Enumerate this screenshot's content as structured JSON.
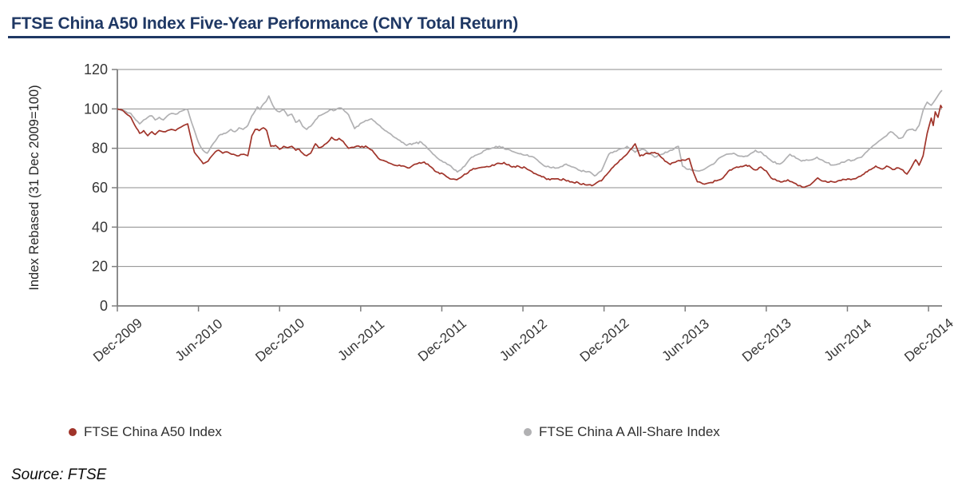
{
  "header": {
    "title": "FTSE China A50 Index Five-Year Performance (CNY Total Return)",
    "title_color": "#1F3864",
    "rule_color": "#1F3864"
  },
  "footer": {
    "source": "Source: FTSE"
  },
  "chart_data": {
    "type": "line",
    "title": "FTSE China A50 Index Five-Year Performance (CNY Total Return)",
    "xlabel": "",
    "ylabel": "Index Rebased (31 Dec 2009=100)",
    "ylim": [
      0,
      120
    ],
    "yticks": [
      0,
      20,
      40,
      60,
      80,
      100,
      120
    ],
    "x_unit": "months since Dec-2009",
    "xlim_months": [
      0,
      61
    ],
    "xticks_months": [
      0,
      6,
      12,
      18,
      24,
      30,
      36,
      42,
      48,
      54,
      60
    ],
    "xticklabels": [
      "Dec-2009",
      "Jun-2010",
      "Dec-2010",
      "Jun-2011",
      "Dec-2011",
      "Jun-2012",
      "Dec-2012",
      "Jun-2013",
      "Dec-2013",
      "Jun-2014",
      "Dec-2014"
    ],
    "grid": "horizontal",
    "legend_position": "bottom",
    "axis_color": "#7f7f7f",
    "grid_color": "#8c8c8c",
    "tick_label_color": "#363636",
    "series": [
      {
        "name": "FTSE China A50 Index",
        "color": "#A0342A",
        "points": [
          [
            0,
            100
          ],
          [
            0.4,
            99.3
          ],
          [
            1.0,
            95.7
          ],
          [
            1.3,
            91.6
          ],
          [
            1.65,
            87.6
          ],
          [
            1.95,
            89.0
          ],
          [
            2.25,
            86.4
          ],
          [
            2.55,
            88.4
          ],
          [
            2.8,
            87.0
          ],
          [
            3.1,
            89.0
          ],
          [
            3.4,
            88.4
          ],
          [
            3.7,
            89.0
          ],
          [
            4.0,
            89.6
          ],
          [
            4.3,
            89.0
          ],
          [
            4.6,
            90.4
          ],
          [
            4.9,
            91.6
          ],
          [
            5.2,
            92.4
          ],
          [
            5.45,
            85.0
          ],
          [
            5.7,
            78.0
          ],
          [
            6.0,
            75.4
          ],
          [
            6.35,
            72.2
          ],
          [
            6.7,
            73.4
          ],
          [
            7.0,
            76.2
          ],
          [
            7.25,
            78.2
          ],
          [
            7.5,
            79.0
          ],
          [
            7.8,
            77.5
          ],
          [
            8.1,
            78.2
          ],
          [
            8.6,
            77.0
          ],
          [
            9.0,
            76.2
          ],
          [
            9.35,
            77.0
          ],
          [
            9.65,
            76.2
          ],
          [
            9.95,
            86.4
          ],
          [
            10.2,
            89.6
          ],
          [
            10.5,
            89.0
          ],
          [
            10.8,
            90.4
          ],
          [
            11.05,
            89.0
          ],
          [
            11.35,
            81.0
          ],
          [
            11.7,
            81.5
          ],
          [
            12.0,
            79.5
          ],
          [
            12.3,
            81.0
          ],
          [
            12.6,
            80.3
          ],
          [
            12.9,
            81.0
          ],
          [
            13.2,
            79.0
          ],
          [
            13.45,
            79.5
          ],
          [
            13.7,
            77.5
          ],
          [
            14.0,
            76.2
          ],
          [
            14.3,
            77.5
          ],
          [
            14.65,
            82.3
          ],
          [
            14.9,
            80.3
          ],
          [
            15.2,
            81.0
          ],
          [
            15.55,
            83.0
          ],
          [
            15.85,
            85.6
          ],
          [
            16.1,
            84.3
          ],
          [
            16.4,
            85.0
          ],
          [
            16.7,
            83.5
          ],
          [
            17.1,
            80.0
          ],
          [
            17.6,
            80.8
          ],
          [
            18.1,
            81.0
          ],
          [
            18.5,
            80.5
          ],
          [
            18.85,
            79.0
          ],
          [
            19.3,
            75.0
          ],
          [
            19.8,
            73.5
          ],
          [
            20.3,
            72.0
          ],
          [
            20.85,
            71.5
          ],
          [
            21.5,
            70.0
          ],
          [
            22.1,
            72.0
          ],
          [
            22.7,
            73.0
          ],
          [
            23.1,
            71.0
          ],
          [
            23.6,
            68.0
          ],
          [
            24.1,
            67.0
          ],
          [
            24.6,
            64.5
          ],
          [
            25.1,
            64.0
          ],
          [
            25.55,
            66.0
          ],
          [
            26.2,
            69.0
          ],
          [
            26.7,
            70.0
          ],
          [
            27.2,
            70.5
          ],
          [
            28.0,
            72.0
          ],
          [
            28.6,
            72.8
          ],
          [
            29.2,
            70.5
          ],
          [
            29.7,
            70.8
          ],
          [
            30.2,
            70.0
          ],
          [
            30.8,
            67.3
          ],
          [
            31.4,
            65.5
          ],
          [
            32.0,
            64.0
          ],
          [
            32.6,
            64.5
          ],
          [
            33.1,
            64.0
          ],
          [
            33.6,
            63.0
          ],
          [
            34.1,
            62.5
          ],
          [
            34.6,
            61.5
          ],
          [
            35.1,
            61.0
          ],
          [
            35.45,
            62.5
          ],
          [
            35.8,
            63.5
          ],
          [
            36.3,
            67.5
          ],
          [
            36.8,
            71.5
          ],
          [
            37.3,
            74.5
          ],
          [
            37.8,
            78.0
          ],
          [
            38.3,
            82.3
          ],
          [
            38.65,
            76.0
          ],
          [
            39.0,
            77.0
          ],
          [
            39.5,
            77.8
          ],
          [
            40.0,
            77.3
          ],
          [
            40.5,
            73.5
          ],
          [
            40.9,
            71.8
          ],
          [
            41.4,
            73.5
          ],
          [
            41.9,
            74.0
          ],
          [
            42.3,
            74.8
          ],
          [
            42.6,
            68.0
          ],
          [
            42.9,
            63.0
          ],
          [
            43.3,
            62.0
          ],
          [
            43.8,
            62.5
          ],
          [
            44.3,
            63.5
          ],
          [
            44.8,
            65.0
          ],
          [
            45.3,
            69.0
          ],
          [
            45.8,
            70.5
          ],
          [
            46.1,
            70.8
          ],
          [
            46.5,
            71.5
          ],
          [
            46.85,
            70.5
          ],
          [
            47.2,
            69.0
          ],
          [
            47.6,
            70.5
          ],
          [
            48.0,
            68.5
          ],
          [
            48.35,
            65.0
          ],
          [
            48.8,
            63.5
          ],
          [
            49.2,
            63.0
          ],
          [
            49.6,
            64.0
          ],
          [
            49.9,
            63.0
          ],
          [
            50.35,
            61.0
          ],
          [
            50.8,
            60.2
          ],
          [
            51.1,
            61.0
          ],
          [
            51.5,
            63.0
          ],
          [
            51.8,
            65.0
          ],
          [
            52.1,
            63.5
          ],
          [
            52.5,
            62.8
          ],
          [
            52.9,
            63.0
          ],
          [
            53.3,
            63.5
          ],
          [
            53.9,
            64.0
          ],
          [
            54.5,
            64.5
          ],
          [
            55.1,
            66.5
          ],
          [
            55.6,
            69.0
          ],
          [
            56.1,
            71.0
          ],
          [
            56.6,
            69.5
          ],
          [
            56.9,
            71.0
          ],
          [
            57.2,
            70.0
          ],
          [
            57.5,
            69.3
          ],
          [
            57.8,
            70.0
          ],
          [
            58.1,
            69.0
          ],
          [
            58.4,
            66.9
          ],
          [
            58.7,
            70.0
          ],
          [
            59.05,
            74.2
          ],
          [
            59.3,
            71.4
          ],
          [
            59.6,
            76.2
          ],
          [
            59.9,
            87.6
          ],
          [
            60.2,
            95.3
          ],
          [
            60.35,
            91.6
          ],
          [
            60.5,
            98.5
          ],
          [
            60.7,
            95.7
          ],
          [
            60.9,
            101.8
          ],
          [
            61.0,
            100.5
          ]
        ]
      },
      {
        "name": "FTSE China A All-Share Index",
        "color": "#B1B1B3",
        "points": [
          [
            0,
            100
          ],
          [
            0.4,
            99.0
          ],
          [
            1.0,
            97.7
          ],
          [
            1.35,
            94.4
          ],
          [
            1.65,
            92.4
          ],
          [
            1.95,
            94.4
          ],
          [
            2.25,
            95.7
          ],
          [
            2.55,
            96.5
          ],
          [
            2.8,
            94.4
          ],
          [
            3.1,
            95.7
          ],
          [
            3.4,
            94.4
          ],
          [
            3.7,
            96.5
          ],
          [
            4.0,
            97.7
          ],
          [
            4.3,
            97.3
          ],
          [
            4.6,
            98.5
          ],
          [
            4.9,
            99.3
          ],
          [
            5.2,
            99.7
          ],
          [
            5.5,
            93.0
          ],
          [
            5.8,
            87.0
          ],
          [
            6.0,
            83.0
          ],
          [
            6.2,
            80.3
          ],
          [
            6.5,
            78.0
          ],
          [
            6.65,
            77.5
          ],
          [
            7.0,
            81.5
          ],
          [
            7.5,
            86.4
          ],
          [
            8.0,
            87.6
          ],
          [
            8.4,
            89.6
          ],
          [
            8.7,
            88.4
          ],
          [
            9.0,
            90.4
          ],
          [
            9.3,
            89.6
          ],
          [
            9.65,
            91.6
          ],
          [
            9.95,
            96.5
          ],
          [
            10.15,
            98.5
          ],
          [
            10.35,
            101.0
          ],
          [
            10.55,
            99.7
          ],
          [
            10.8,
            102.5
          ],
          [
            11.0,
            103.8
          ],
          [
            11.2,
            106.6
          ],
          [
            11.5,
            101.8
          ],
          [
            11.7,
            99.7
          ],
          [
            12.0,
            98.5
          ],
          [
            12.3,
            99.7
          ],
          [
            12.6,
            96.5
          ],
          [
            12.9,
            97.3
          ],
          [
            13.2,
            93.2
          ],
          [
            13.45,
            94.4
          ],
          [
            13.7,
            91.2
          ],
          [
            14.0,
            89.6
          ],
          [
            14.3,
            91.2
          ],
          [
            14.65,
            94.4
          ],
          [
            14.9,
            96.5
          ],
          [
            15.2,
            97.3
          ],
          [
            15.55,
            98.5
          ],
          [
            15.85,
            99.7
          ],
          [
            16.1,
            99.3
          ],
          [
            16.4,
            100.5
          ],
          [
            16.7,
            99.7
          ],
          [
            17.1,
            97.0
          ],
          [
            17.55,
            90.0
          ],
          [
            18.1,
            93.0
          ],
          [
            18.8,
            95.0
          ],
          [
            19.3,
            92.0
          ],
          [
            19.8,
            89.0
          ],
          [
            20.4,
            86.0
          ],
          [
            20.9,
            84.0
          ],
          [
            21.4,
            81.5
          ],
          [
            21.9,
            82.5
          ],
          [
            22.5,
            83.0
          ],
          [
            23.1,
            79.0
          ],
          [
            23.6,
            75.5
          ],
          [
            24.1,
            73.0
          ],
          [
            24.55,
            71.5
          ],
          [
            25.15,
            68.0
          ],
          [
            25.7,
            71.0
          ],
          [
            26.2,
            75.5
          ],
          [
            26.7,
            77.0
          ],
          [
            27.2,
            79.0
          ],
          [
            28.0,
            81.0
          ],
          [
            28.9,
            79.5
          ],
          [
            29.6,
            77.5
          ],
          [
            30.2,
            76.5
          ],
          [
            30.8,
            75.5
          ],
          [
            31.6,
            71.0
          ],
          [
            32.5,
            70.0
          ],
          [
            33.2,
            72.0
          ],
          [
            34.1,
            69.0
          ],
          [
            34.7,
            68.0
          ],
          [
            35.05,
            67.5
          ],
          [
            35.3,
            66.0
          ],
          [
            35.8,
            68.5
          ],
          [
            36.35,
            77.0
          ],
          [
            36.9,
            78.5
          ],
          [
            37.35,
            80.0
          ],
          [
            37.7,
            81.0
          ],
          [
            38.3,
            78.0
          ],
          [
            38.9,
            79.5
          ],
          [
            39.75,
            75.5
          ],
          [
            40.3,
            77.0
          ],
          [
            40.9,
            79.0
          ],
          [
            41.5,
            81.0
          ],
          [
            41.8,
            71.0
          ],
          [
            42.1,
            69.5
          ],
          [
            42.6,
            69.0
          ],
          [
            43.3,
            69.0
          ],
          [
            44.1,
            72.0
          ],
          [
            44.5,
            75.0
          ],
          [
            45.05,
            77.0
          ],
          [
            45.6,
            77.5
          ],
          [
            46.05,
            76.0
          ],
          [
            46.6,
            76.0
          ],
          [
            47.2,
            79.0
          ],
          [
            47.7,
            77.5
          ],
          [
            48.4,
            73.5
          ],
          [
            49.0,
            72.0
          ],
          [
            49.3,
            73.5
          ],
          [
            49.75,
            77.0
          ],
          [
            50.2,
            75.0
          ],
          [
            50.6,
            73.5
          ],
          [
            51.2,
            74.0
          ],
          [
            51.75,
            75.5
          ],
          [
            52.35,
            73.0
          ],
          [
            52.9,
            71.5
          ],
          [
            53.3,
            72.0
          ],
          [
            53.9,
            73.5
          ],
          [
            54.5,
            74.0
          ],
          [
            55.05,
            75.5
          ],
          [
            55.6,
            79.5
          ],
          [
            56.05,
            82.0
          ],
          [
            56.6,
            85.0
          ],
          [
            56.9,
            86.4
          ],
          [
            57.2,
            88.4
          ],
          [
            57.5,
            87.0
          ],
          [
            57.8,
            85.0
          ],
          [
            58.1,
            85.6
          ],
          [
            58.4,
            89.0
          ],
          [
            58.7,
            89.6
          ],
          [
            59.05,
            89.0
          ],
          [
            59.3,
            91.6
          ],
          [
            59.6,
            99.3
          ],
          [
            59.9,
            103.4
          ],
          [
            60.2,
            101.8
          ],
          [
            60.5,
            104.6
          ],
          [
            60.8,
            107.8
          ],
          [
            61.0,
            109.4
          ]
        ]
      }
    ]
  }
}
